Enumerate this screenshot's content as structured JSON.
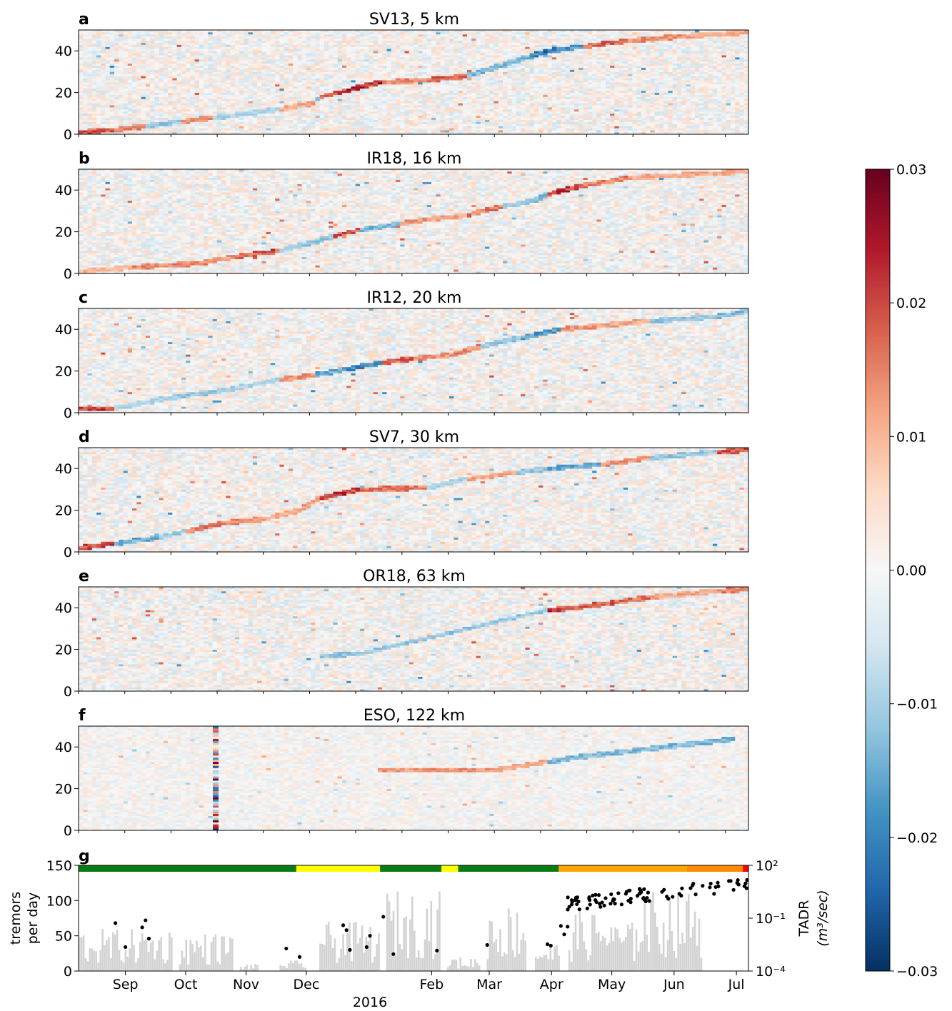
{
  "figure": {
    "colorbar": {
      "min": -0.03,
      "max": 0.03,
      "ticks": [
        "0.03",
        "0.02",
        "0.01",
        "0.00",
        "−0.01",
        "−0.02",
        "−0.03"
      ],
      "tick_values": [
        0.03,
        0.02,
        0.01,
        0.0,
        -0.01,
        -0.02,
        -0.03
      ],
      "colormap": "RdBu_r",
      "stops": [
        "#053061",
        "#2166ac",
        "#4393c3",
        "#92c5de",
        "#d1e5f0",
        "#f7f7f7",
        "#fddbc7",
        "#f4a582",
        "#d6604d",
        "#b2182b",
        "#67001f"
      ]
    },
    "x_axis": {
      "months": [
        "Sep",
        "Oct",
        "Nov",
        "Dec",
        "Feb",
        "Mar",
        "Apr",
        "May",
        "Jun",
        "Jul"
      ],
      "year_label": "2016"
    }
  },
  "chart_data": [
    {
      "panel": "a",
      "title": "SV13, 5 km",
      "type": "heatmap",
      "ylim": [
        0,
        50
      ],
      "yticks": [
        "0",
        "20",
        "40"
      ],
      "band": [
        [
          0,
          1,
          0.02
        ],
        [
          0.05,
          2,
          0.015
        ],
        [
          0.1,
          4,
          -0.012
        ],
        [
          0.15,
          6,
          0.014
        ],
        [
          0.2,
          8,
          -0.01
        ],
        [
          0.25,
          10,
          -0.01
        ],
        [
          0.3,
          12,
          0.012
        ],
        [
          0.35,
          15,
          -0.014
        ],
        [
          0.36,
          18,
          0.02
        ],
        [
          0.4,
          21,
          0.025
        ],
        [
          0.45,
          25,
          0.015
        ],
        [
          0.52,
          26,
          0.018
        ],
        [
          0.58,
          28,
          -0.015
        ],
        [
          0.62,
          32,
          -0.014
        ],
        [
          0.67,
          37,
          -0.022
        ],
        [
          0.7,
          40,
          -0.02
        ],
        [
          0.75,
          42,
          0.018
        ],
        [
          0.82,
          45,
          0.014
        ],
        [
          0.9,
          47,
          0.012
        ],
        [
          1,
          49,
          0.015
        ]
      ]
    },
    {
      "panel": "b",
      "title": "IR18, 16 km",
      "type": "heatmap",
      "ylim": [
        0,
        50
      ],
      "yticks": [
        "0",
        "20",
        "40"
      ],
      "band": [
        [
          0,
          1,
          0.01
        ],
        [
          0.08,
          3,
          0.015
        ],
        [
          0.18,
          5,
          0.014
        ],
        [
          0.23,
          8,
          0.02
        ],
        [
          0.3,
          11,
          -0.012
        ],
        [
          0.35,
          15,
          -0.012
        ],
        [
          0.38,
          18,
          0.02
        ],
        [
          0.42,
          21,
          -0.014
        ],
        [
          0.48,
          24,
          0.014
        ],
        [
          0.52,
          26,
          0.012
        ],
        [
          0.58,
          28,
          0.016
        ],
        [
          0.63,
          32,
          -0.012
        ],
        [
          0.68,
          35,
          -0.014
        ],
        [
          0.7,
          38,
          0.022
        ],
        [
          0.75,
          42,
          0.016
        ],
        [
          0.82,
          46,
          0.012
        ],
        [
          1,
          49,
          0.01
        ]
      ]
    },
    {
      "panel": "c",
      "title": "IR12, 20 km",
      "type": "heatmap",
      "ylim": [
        0,
        50
      ],
      "yticks": [
        "0",
        "20",
        "40"
      ],
      "band": [
        [
          0,
          2,
          0.022
        ],
        [
          0.05,
          2,
          -0.01
        ],
        [
          0.1,
          5,
          -0.01
        ],
        [
          0.13,
          7,
          -0.012
        ],
        [
          0.22,
          11,
          -0.01
        ],
        [
          0.3,
          16,
          0.014
        ],
        [
          0.35,
          18,
          -0.016
        ],
        [
          0.4,
          21,
          -0.02
        ],
        [
          0.45,
          24,
          0.018
        ],
        [
          0.5,
          26,
          0.014
        ],
        [
          0.56,
          28,
          0.016
        ],
        [
          0.6,
          32,
          -0.012
        ],
        [
          0.66,
          36,
          -0.018
        ],
        [
          0.72,
          40,
          0.014
        ],
        [
          0.78,
          42,
          0.012
        ],
        [
          0.85,
          44,
          -0.012
        ],
        [
          0.95,
          46,
          -0.014
        ],
        [
          1,
          49,
          0.014
        ]
      ]
    },
    {
      "panel": "d",
      "title": "SV7, 30 km",
      "type": "heatmap",
      "ylim": [
        0,
        50
      ],
      "yticks": [
        "0",
        "20",
        "40"
      ],
      "band": [
        [
          0,
          2,
          0.02
        ],
        [
          0.05,
          4,
          -0.015
        ],
        [
          0.12,
          7,
          -0.012
        ],
        [
          0.16,
          10,
          0.016
        ],
        [
          0.22,
          14,
          0.014
        ],
        [
          0.28,
          16,
          0.012
        ],
        [
          0.33,
          20,
          0.014
        ],
        [
          0.36,
          26,
          0.022
        ],
        [
          0.42,
          30,
          0.016
        ],
        [
          0.52,
          31,
          -0.01
        ],
        [
          0.58,
          35,
          0.012
        ],
        [
          0.65,
          38,
          -0.012
        ],
        [
          0.7,
          40,
          -0.016
        ],
        [
          0.78,
          42,
          0.014
        ],
        [
          0.85,
          45,
          -0.012
        ],
        [
          0.95,
          48,
          0.02
        ],
        [
          1,
          49,
          0.02
        ]
      ]
    },
    {
      "panel": "e",
      "title": "OR18, 63 km",
      "type": "heatmap",
      "ylim": [
        0,
        50
      ],
      "yticks": [
        "0",
        "20",
        "40"
      ],
      "band": [
        [
          0.36,
          17,
          -0.012
        ],
        [
          0.42,
          18,
          -0.012
        ],
        [
          0.7,
          39,
          0.022
        ],
        [
          0.74,
          40,
          0.018
        ],
        [
          0.85,
          45,
          0.012
        ],
        [
          0.95,
          48,
          0.016
        ],
        [
          1,
          49,
          0.016
        ]
      ]
    },
    {
      "panel": "f",
      "title": "ESO, 122 km",
      "type": "heatmap",
      "ylim": [
        0,
        50
      ],
      "yticks": [
        "0",
        "20",
        "40"
      ],
      "band": [
        [
          0.45,
          29,
          0.014
        ],
        [
          0.62,
          29,
          0.012
        ],
        [
          0.7,
          33,
          -0.014
        ],
        [
          0.74,
          35,
          -0.014
        ],
        [
          0.98,
          44,
          0.012
        ]
      ]
    },
    {
      "panel": "g",
      "type": "bar",
      "ylabel": "tremors\nper day",
      "yticks": [
        "0",
        "50",
        "100",
        "150"
      ],
      "ylim": [
        0,
        150
      ],
      "right_axis": {
        "label": "TADR",
        "unit": "(m³/sec)",
        "scale": "log",
        "ticks": [
          "10⁻⁴",
          "10⁻¹",
          "10²"
        ]
      },
      "tremor_windows": [
        [
          0.0,
          0.14,
          60
        ],
        [
          0.15,
          0.23,
          55
        ],
        [
          0.24,
          0.27,
          10
        ],
        [
          0.3,
          0.34,
          15
        ],
        [
          0.36,
          0.45,
          70
        ],
        [
          0.46,
          0.54,
          115
        ],
        [
          0.55,
          0.6,
          20
        ],
        [
          0.61,
          0.67,
          95
        ],
        [
          0.68,
          0.72,
          40
        ],
        [
          0.73,
          0.8,
          85
        ],
        [
          0.8,
          0.83,
          70
        ],
        [
          0.83,
          0.93,
          115
        ]
      ],
      "tadr_points": [
        [
          0.055,
          68
        ],
        [
          0.07,
          34
        ],
        [
          0.095,
          62
        ],
        [
          0.1,
          72
        ],
        [
          0.105,
          46
        ],
        [
          0.31,
          32
        ],
        [
          0.33,
          20
        ],
        [
          0.395,
          65
        ],
        [
          0.4,
          58
        ],
        [
          0.405,
          30
        ],
        [
          0.43,
          34
        ],
        [
          0.435,
          50
        ],
        [
          0.455,
          77
        ],
        [
          0.47,
          24
        ],
        [
          0.535,
          29
        ],
        [
          0.61,
          37
        ],
        [
          0.7,
          38
        ],
        [
          0.705,
          36
        ],
        [
          0.72,
          64
        ],
        [
          0.725,
          52
        ],
        [
          0.73,
          63
        ]
      ]
    }
  ]
}
